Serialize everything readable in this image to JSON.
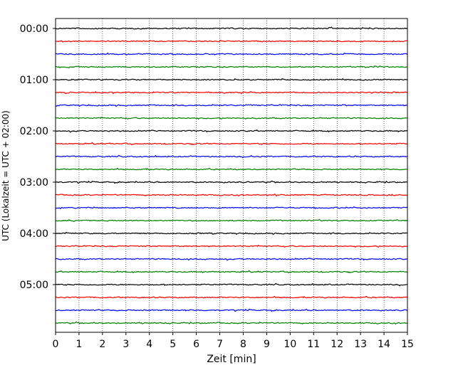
{
  "chart_data": {
    "type": "line",
    "title": "",
    "xlabel": "Zeit  [min]",
    "ylabel": "UTC (Lokalzeit = UTC + 02:00)",
    "xlim": [
      0,
      15
    ],
    "x_ticks": [
      "0",
      "1",
      "2",
      "3",
      "4",
      "5",
      "6",
      "7",
      "8",
      "9",
      "10",
      "11",
      "12",
      "13",
      "14",
      "15"
    ],
    "y_tick_labels": [
      "00:00",
      "01:00",
      "02:00",
      "03:00",
      "04:00",
      "05:00"
    ],
    "trace_interval_min": 15,
    "trace_count": 24,
    "trace_colors": [
      "#000000",
      "#ff0000",
      "#0000ff",
      "#007f00"
    ],
    "vertical_grid": true,
    "grid_style": "dotted"
  }
}
